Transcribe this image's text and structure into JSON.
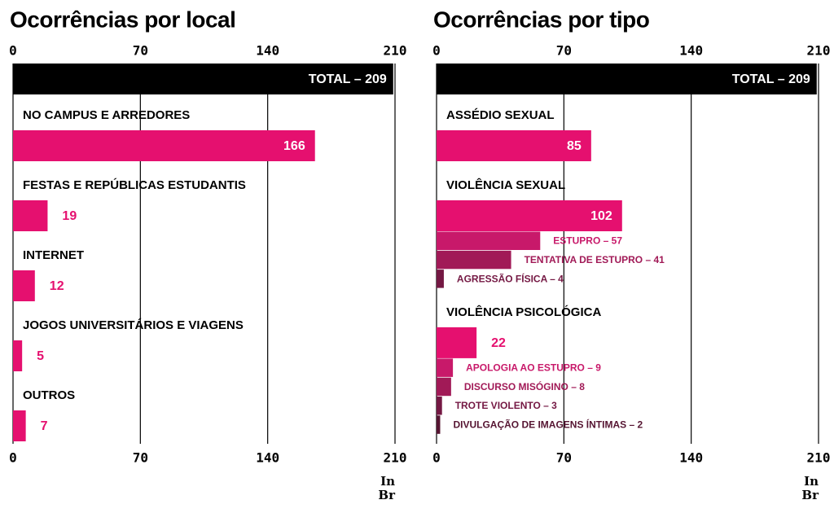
{
  "chart_data": [
    {
      "type": "bar",
      "orientation": "horizontal",
      "title": "Ocorrências por local",
      "xlim": [
        0,
        210
      ],
      "xticks": [
        0,
        70,
        140,
        210
      ],
      "grid": true,
      "color": "#e5106f",
      "total": {
        "value": 209,
        "label": "TOTAL – 209"
      },
      "total_color": "#000000",
      "categories": [
        {
          "name": "NO CAMPUS E ARREDORES",
          "value": 166
        },
        {
          "name": "FESTAS E REPÚBLICAS ESTUDANTIS",
          "value": 19
        },
        {
          "name": "INTERNET",
          "value": 12
        },
        {
          "name": "JOGOS UNIVERSITÁRIOS E VIAGENS",
          "value": 5
        },
        {
          "name": "OUTROS",
          "value": 7
        }
      ],
      "logo": [
        "In",
        "Br"
      ]
    },
    {
      "type": "bar",
      "orientation": "horizontal",
      "title": "Ocorrências por tipo",
      "xlim": [
        0,
        210
      ],
      "xticks": [
        0,
        70,
        140,
        210
      ],
      "grid": true,
      "color": "#e5106f",
      "total": {
        "value": 209,
        "label": "TOTAL – 209"
      },
      "total_color": "#000000",
      "categories": [
        {
          "name": "ASSÉDIO SEXUAL",
          "value": 85
        },
        {
          "name": "VIOLÊNCIA SEXUAL",
          "value": 102,
          "parts": [
            {
              "value": 57,
              "label": "ESTUPRO – 57",
              "color": "#c8196a"
            },
            {
              "value": 41,
              "label": "TENTATIVA DE ESTUPRO – 41",
              "color": "#a11a57"
            },
            {
              "value": 4,
              "label": "AGRESSÃO FÍSICA – 4",
              "color": "#741843"
            }
          ]
        },
        {
          "name": "VIOLÊNCIA PSICOLÓGICA",
          "value": 22,
          "parts": [
            {
              "value": 9,
              "label": "APOLOGIA AO ESTUPRO – 9",
              "color": "#c8196a"
            },
            {
              "value": 8,
              "label": "DISCURSO MISÓGINO – 8",
              "color": "#a11a57"
            },
            {
              "value": 3,
              "label": "TROTE VIOLENTO – 3",
              "color": "#741843"
            },
            {
              "value": 2,
              "label": "DIVULGAÇÃO DE IMAGENS ÍNTIMAS – 2",
              "color": "#561532"
            }
          ]
        }
      ],
      "logo": [
        "In",
        "Br"
      ]
    }
  ]
}
